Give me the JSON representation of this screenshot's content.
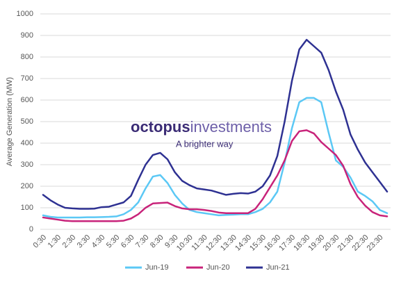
{
  "chart_data": {
    "type": "line",
    "y_label": "Average Generation (MW)",
    "annotations": {
      "brand_bold": "octopus",
      "brand_light": "investments",
      "tagline": "A brighter way"
    },
    "categories": [
      "0:30",
      null,
      "1:30",
      null,
      "2:30",
      null,
      "3:30",
      null,
      "4:30",
      null,
      "5:30",
      null,
      "6:30",
      null,
      "7:30",
      null,
      "8:30",
      null,
      "9:30",
      null,
      "10:30",
      null,
      "11:30",
      null,
      "12:30",
      null,
      "13:30",
      null,
      "14:30",
      null,
      "15:30",
      null,
      "16:30",
      null,
      "17:30",
      null,
      "18:30",
      null,
      "19:30",
      null,
      "20:30",
      null,
      "21:30",
      null,
      "22:30",
      null,
      "23:30",
      null
    ],
    "series": [
      {
        "name": "Jun-19",
        "color": "#5bc8f5",
        "values": [
          65,
          58,
          55,
          55,
          55,
          55,
          56,
          56,
          57,
          58,
          60,
          70,
          90,
          125,
          190,
          245,
          252,
          215,
          160,
          120,
          90,
          80,
          75,
          70,
          65,
          67,
          68,
          70,
          70,
          80,
          95,
          125,
          175,
          310,
          470,
          590,
          610,
          610,
          590,
          450,
          320,
          290,
          240,
          175,
          155,
          130,
          90,
          75
        ]
      },
      {
        "name": "Jun-20",
        "color": "#c8237a",
        "values": [
          55,
          50,
          45,
          40,
          38,
          38,
          38,
          38,
          38,
          38,
          38,
          40,
          50,
          70,
          100,
          120,
          122,
          124,
          108,
          97,
          93,
          93,
          90,
          85,
          78,
          75,
          75,
          75,
          75,
          95,
          140,
          195,
          250,
          320,
          410,
          455,
          460,
          445,
          405,
          375,
          345,
          295,
          210,
          150,
          110,
          80,
          65,
          60
        ]
      },
      {
        "name": "Jun-21",
        "color": "#2e3192",
        "values": [
          160,
          135,
          115,
          100,
          97,
          95,
          95,
          96,
          103,
          105,
          115,
          125,
          155,
          230,
          300,
          345,
          355,
          325,
          265,
          225,
          205,
          190,
          185,
          180,
          170,
          160,
          165,
          168,
          166,
          175,
          200,
          250,
          340,
          500,
          690,
          835,
          880,
          850,
          820,
          740,
          640,
          555,
          440,
          370,
          310,
          265,
          220,
          175
        ]
      }
    ],
    "ylim": [
      0,
      1000
    ],
    "yticks": [
      0,
      100,
      200,
      300,
      400,
      500,
      600,
      700,
      800,
      900,
      1000
    ],
    "grid": true,
    "legend": "bottom"
  }
}
